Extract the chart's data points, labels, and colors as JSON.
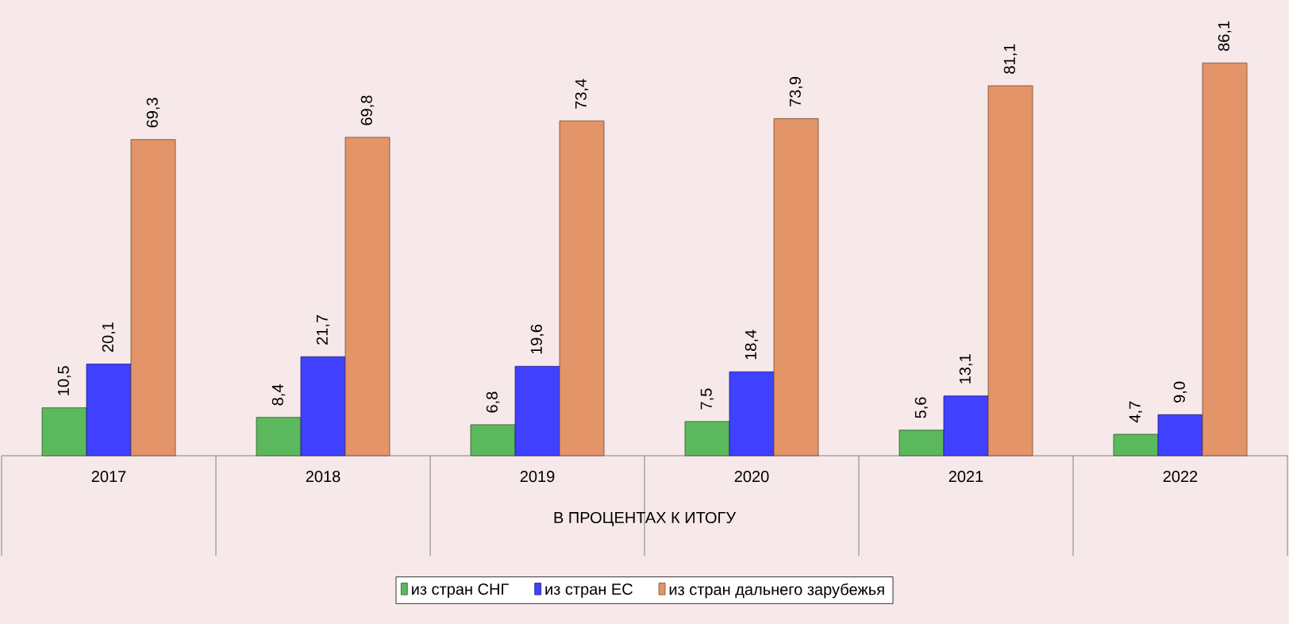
{
  "chart_data": {
    "type": "bar",
    "xlabel": "В ПРОЦЕНТАХ К ИТОГУ",
    "categories": [
      "2017",
      "2018",
      "2019",
      "2020",
      "2021",
      "2022"
    ],
    "series": [
      {
        "name": "из стран СНГ",
        "color": "#5cb85c",
        "values": [
          10.5,
          8.4,
          6.8,
          7.5,
          5.6,
          4.7
        ],
        "value_labels": [
          "10,5",
          "8,4",
          "6,8",
          "7,5",
          "5,6",
          "4,7"
        ]
      },
      {
        "name": "из стран ЕС",
        "color": "#4040ff",
        "values": [
          20.1,
          21.7,
          19.6,
          18.4,
          13.1,
          9.0
        ],
        "value_labels": [
          "20,1",
          "21,7",
          "19,6",
          "18,4",
          "13,1",
          "9,0"
        ]
      },
      {
        "name": "из стран дальнего зарубежья",
        "color": "#e39468",
        "values": [
          69.3,
          69.8,
          73.4,
          73.9,
          81.1,
          86.1
        ],
        "value_labels": [
          "69,3",
          "69,8",
          "73,4",
          "73,9",
          "81,1",
          "86,1"
        ]
      }
    ],
    "legend": "bottom"
  }
}
